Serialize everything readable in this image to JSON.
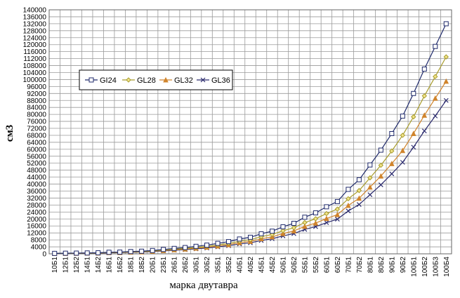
{
  "chart_data": {
    "type": "line",
    "x_label": "марка двутавра",
    "y_label": "см3",
    "categories": [
      "10Б1",
      "12Б1",
      "12Б2",
      "14Б1",
      "14Б2",
      "16Б1",
      "16Б2",
      "18Б1",
      "18Б2",
      "20Б1",
      "23Б1",
      "26Б1",
      "26Б2",
      "30Б1",
      "30Б2",
      "35Б1",
      "35Б2",
      "40Б1",
      "40Б2",
      "45Б1",
      "45Б2",
      "50Б1",
      "50Б2",
      "55Б1",
      "55Б2",
      "60Б1",
      "60Б2",
      "70Б1",
      "70Б2",
      "80Б1",
      "80Б2",
      "90Б1",
      "90Б2",
      "100Б1",
      "100Б2",
      "100Б3",
      "100Б4"
    ],
    "series": [
      {
        "name": "GI24",
        "color": "#1f2a6b",
        "marker": "square",
        "values": [
          250,
          350,
          400,
          500,
          600,
          900,
          1000,
          1300,
          1500,
          1900,
          2500,
          3100,
          3600,
          4300,
          5000,
          6000,
          7000,
          8500,
          9500,
          11500,
          13000,
          15500,
          17500,
          21000,
          23500,
          27000,
          30000,
          37000,
          42500,
          51000,
          59500,
          69000,
          79000,
          92000,
          106000,
          119000,
          132000
        ]
      },
      {
        "name": "GL28",
        "color": "#a89c2c",
        "marker": "diamond",
        "values": [
          210,
          300,
          340,
          430,
          510,
          770,
          860,
          1110,
          1280,
          1620,
          2140,
          2650,
          3080,
          3680,
          4280,
          5130,
          5990,
          7270,
          8120,
          9830,
          11100,
          13250,
          14950,
          17950,
          20100,
          23100,
          25650,
          31600,
          36300,
          43600,
          50800,
          59000,
          68000,
          78600,
          90600,
          101700,
          113000
        ]
      },
      {
        "name": "GL32",
        "color": "#d0842c",
        "marker": "triangle",
        "values": [
          190,
          260,
          300,
          380,
          450,
          680,
          750,
          980,
          1130,
          1430,
          1880,
          2330,
          2700,
          3230,
          3750,
          4500,
          5250,
          6380,
          7130,
          8630,
          9750,
          11630,
          13130,
          15750,
          17630,
          20250,
          22500,
          27750,
          31880,
          38250,
          44630,
          51750,
          59250,
          69000,
          79500,
          89250,
          99000
        ]
      },
      {
        "name": "GL36",
        "color": "#2b2b6e",
        "marker": "x",
        "values": [
          170,
          230,
          270,
          330,
          400,
          600,
          670,
          860,
          1000,
          1260,
          1660,
          2060,
          2390,
          2860,
          3330,
          3990,
          4660,
          5650,
          6320,
          7650,
          8650,
          10300,
          11600,
          14000,
          15600,
          17900,
          19900,
          24600,
          28300,
          33900,
          39600,
          45900,
          52500,
          61200,
          70500,
          79100,
          88000
        ]
      }
    ],
    "ylim": [
      0,
      140000
    ],
    "yticks": [
      0,
      4000,
      8000,
      12000,
      16000,
      20000,
      24000,
      28000,
      32000,
      36000,
      40000,
      44000,
      48000,
      52000,
      56000,
      60000,
      64000,
      68000,
      72000,
      76000,
      80000,
      84000,
      88000,
      92000,
      96000,
      100000,
      104000,
      108000,
      112000,
      116000,
      120000,
      124000,
      128000,
      132000,
      136000,
      140000
    ],
    "grid": true,
    "legend": "upper-left"
  }
}
